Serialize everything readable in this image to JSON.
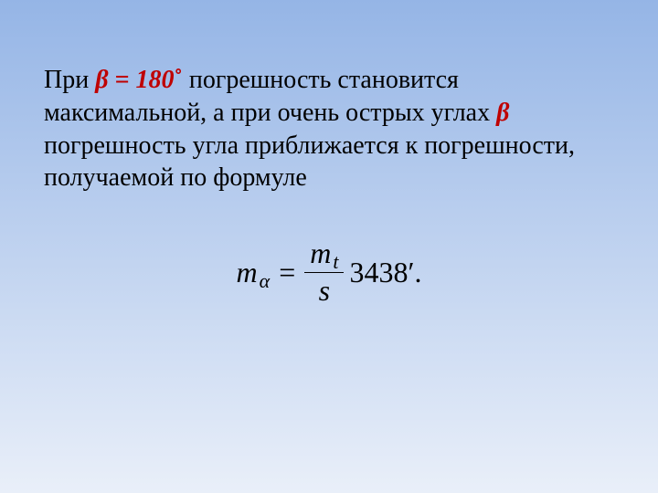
{
  "slide": {
    "background_gradient": {
      "from": "#95b5e6",
      "to": "#e9eff9",
      "angle_deg": 180
    },
    "text": {
      "t1": "При ",
      "beta_eq": "β = 180",
      "deg": "˚",
      "t2": " погрешность становится максимальной, а при очень острых углах ",
      "beta2": "β",
      "t3": " погрешность угла приближается к погрешности, получаемой по формуле",
      "font_size_pt": 28,
      "color": "#000000",
      "accent_color": "#bf0000"
    },
    "formula": {
      "lhs_base": "m",
      "lhs_sub": "α",
      "eq": "=",
      "num_base": "m",
      "num_sub": "t",
      "den": "s",
      "factor": "3438",
      "prime": "′",
      "period": ".",
      "font_size_pt": 32,
      "color": "#000000"
    }
  }
}
